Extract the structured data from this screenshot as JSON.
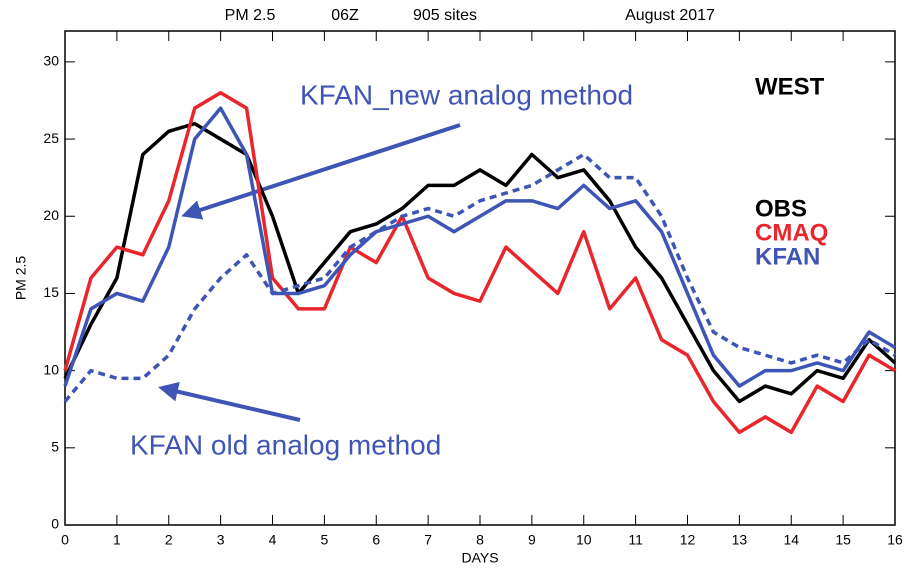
{
  "chart_data": {
    "type": "line",
    "header_items": [
      "PM 2.5",
      "06Z",
      "905 sites",
      "August 2017"
    ],
    "region": "WEST",
    "y_label": "PM 2.5",
    "x_label": "DAYS",
    "annotations": [
      "KFAN_new analog method",
      "KFAN old analog method"
    ],
    "xlim": [
      0,
      16
    ],
    "xticks": [
      0,
      1,
      2,
      3,
      4,
      5,
      6,
      7,
      8,
      9,
      10,
      11,
      12,
      13,
      14,
      15,
      16
    ],
    "ylim": [
      0,
      32
    ],
    "yticks": [
      0,
      5,
      10,
      15,
      20,
      25,
      30
    ],
    "x": [
      0,
      0.5,
      1,
      1.5,
      2,
      2.5,
      3,
      3.5,
      4,
      4.5,
      5,
      5.5,
      6,
      6.5,
      7,
      7.5,
      8,
      8.5,
      9,
      9.5,
      10,
      10.5,
      11,
      11.5,
      12,
      12.5,
      13,
      13.5,
      14,
      14.5,
      15,
      15.5,
      16
    ],
    "series": [
      {
        "name": "OBS",
        "color": "#000000",
        "dash": false,
        "values": [
          9.5,
          13,
          16,
          24,
          25.5,
          26,
          25,
          24,
          20,
          15,
          17,
          19,
          19.5,
          20.5,
          22,
          22,
          23,
          22,
          24,
          22.5,
          23,
          21,
          18,
          16,
          13,
          10,
          8,
          9,
          8.5,
          10,
          9.5,
          12,
          10.5
        ]
      },
      {
        "name": "CMAQ",
        "color": "#e8262b",
        "dash": false,
        "values": [
          10,
          16,
          18,
          17.5,
          21,
          27,
          28,
          27,
          16,
          14,
          14,
          18,
          17,
          20,
          16,
          15,
          14.5,
          18,
          16.5,
          15,
          19,
          14,
          16,
          12,
          11,
          8,
          6,
          7,
          6,
          9,
          8,
          11,
          10
        ]
      },
      {
        "name": "KFAN",
        "color": "#3f55b5",
        "dash": false,
        "values": [
          9,
          14,
          15,
          14.5,
          18,
          25,
          27,
          24,
          15,
          15,
          15.5,
          17.5,
          19,
          19.5,
          20,
          19,
          20,
          21,
          21,
          20.5,
          22,
          20.5,
          21,
          19,
          15,
          11,
          9,
          10,
          10,
          10.5,
          10,
          12.5,
          11.5
        ]
      },
      {
        "color": "#3f55b5",
        "dash": true,
        "values": [
          8,
          10,
          9.5,
          9.5,
          11,
          14,
          16,
          17.5,
          15,
          15.5,
          16,
          18,
          19,
          20,
          20.5,
          20,
          21,
          21.5,
          22,
          23,
          24,
          22.5,
          22.5,
          20,
          16,
          12.5,
          11.5,
          11,
          10.5,
          11,
          10.5,
          12,
          11
        ]
      }
    ]
  }
}
